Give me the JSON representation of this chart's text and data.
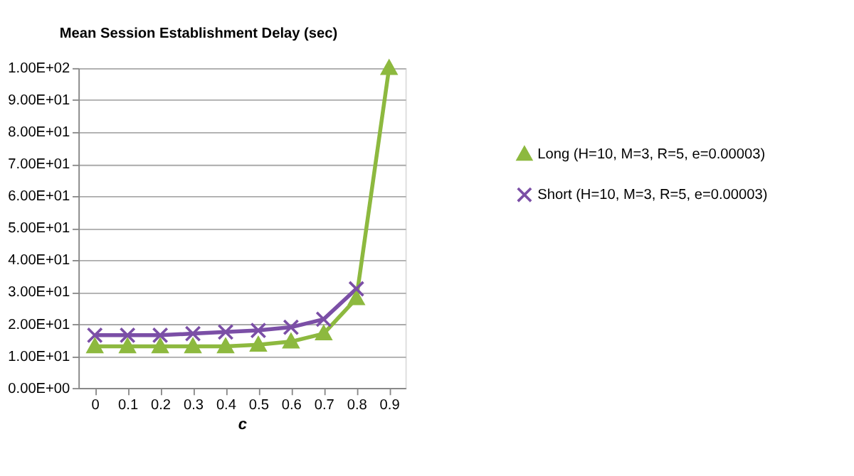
{
  "chart_data": {
    "type": "line",
    "title": "Mean Session Establishment Delay (sec)",
    "xlabel": "c",
    "categories": [
      "0",
      "0.1",
      "0.2",
      "0.3",
      "0.4",
      "0.5",
      "0.6",
      "0.7",
      "0.8",
      "0.9"
    ],
    "series": [
      {
        "name": "Long (H=10, M=3, R=5, e=0.00003)",
        "color": "#8db93f",
        "marker": "triangle",
        "values": [
          13,
          13,
          13,
          13,
          13,
          13.5,
          14.5,
          17,
          28,
          100
        ]
      },
      {
        "name": "Short (H=10, M=3, R=5, e=0.00003)",
        "color": "#7b4fa6",
        "marker": "cross",
        "values": [
          16.5,
          16.5,
          16.5,
          17,
          17.5,
          18,
          19,
          21.5,
          31,
          null
        ]
      }
    ],
    "ylim": [
      0,
      100
    ],
    "yticks": [
      {
        "value": 0,
        "label": "0.00E+00"
      },
      {
        "value": 10,
        "label": "1.00E+01"
      },
      {
        "value": 20,
        "label": "2.00E+01"
      },
      {
        "value": 30,
        "label": "3.00E+01"
      },
      {
        "value": 40,
        "label": "4.00E+01"
      },
      {
        "value": 50,
        "label": "5.00E+01"
      },
      {
        "value": 60,
        "label": "6.00E+01"
      },
      {
        "value": 70,
        "label": "7.00E+01"
      },
      {
        "value": 80,
        "label": "8.00E+01"
      },
      {
        "value": 90,
        "label": "9.00E+01"
      },
      {
        "value": 100,
        "label": "1.00E+02"
      }
    ],
    "grid": "y",
    "legend": "right"
  }
}
